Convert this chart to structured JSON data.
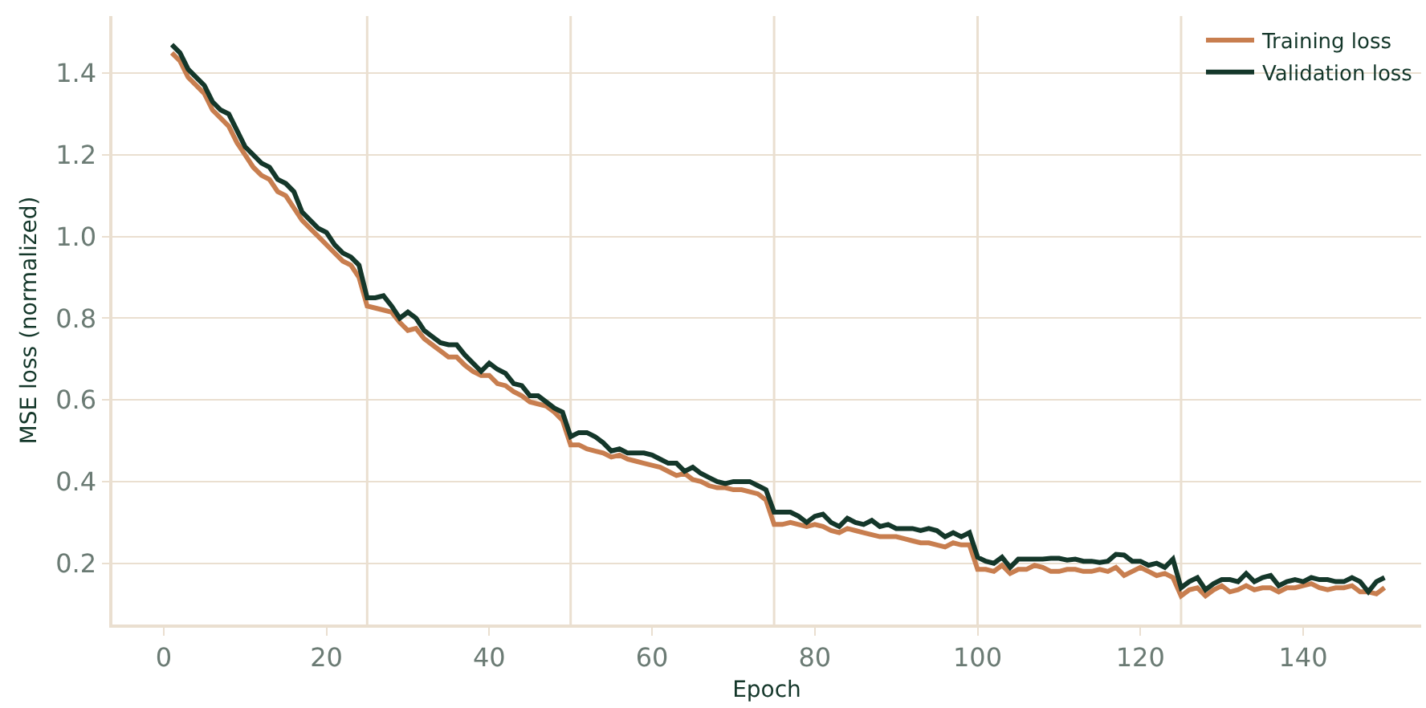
{
  "chart_data": {
    "type": "line",
    "xlabel": "Epoch",
    "ylabel": "MSE loss (normalized)",
    "x": [
      1,
      2,
      3,
      4,
      5,
      6,
      7,
      8,
      9,
      10,
      11,
      12,
      13,
      14,
      15,
      16,
      17,
      18,
      19,
      20,
      21,
      22,
      23,
      24,
      25,
      26,
      27,
      28,
      29,
      30,
      31,
      32,
      33,
      34,
      35,
      36,
      37,
      38,
      39,
      40,
      41,
      42,
      43,
      44,
      45,
      46,
      47,
      48,
      49,
      50,
      51,
      52,
      53,
      54,
      55,
      56,
      57,
      58,
      59,
      60,
      61,
      62,
      63,
      64,
      65,
      66,
      67,
      68,
      69,
      70,
      71,
      72,
      73,
      74,
      75,
      76,
      77,
      78,
      79,
      80,
      81,
      82,
      83,
      84,
      85,
      86,
      87,
      88,
      89,
      90,
      91,
      92,
      93,
      94,
      95,
      96,
      97,
      98,
      99,
      100,
      101,
      102,
      103,
      104,
      105,
      106,
      107,
      108,
      109,
      110,
      111,
      112,
      113,
      114,
      115,
      116,
      117,
      118,
      119,
      120,
      121,
      122,
      123,
      124,
      125,
      126,
      127,
      128,
      129,
      130,
      131,
      132,
      133,
      134,
      135,
      136,
      137,
      138,
      139,
      140,
      141,
      142,
      143,
      144,
      145,
      146,
      147,
      148,
      149,
      150
    ],
    "series": [
      {
        "name": "Training loss",
        "color": "#c87e4f",
        "values": [
          1.45,
          1.43,
          1.39,
          1.37,
          1.35,
          1.31,
          1.29,
          1.27,
          1.23,
          1.2,
          1.17,
          1.15,
          1.14,
          1.11,
          1.1,
          1.07,
          1.04,
          1.02,
          1.0,
          0.98,
          0.96,
          0.94,
          0.93,
          0.9,
          0.83,
          0.825,
          0.82,
          0.815,
          0.79,
          0.77,
          0.775,
          0.75,
          0.735,
          0.72,
          0.705,
          0.705,
          0.685,
          0.67,
          0.66,
          0.66,
          0.64,
          0.635,
          0.62,
          0.61,
          0.595,
          0.59,
          0.585,
          0.57,
          0.55,
          0.49,
          0.49,
          0.48,
          0.475,
          0.47,
          0.46,
          0.465,
          0.455,
          0.45,
          0.445,
          0.44,
          0.435,
          0.425,
          0.415,
          0.42,
          0.405,
          0.4,
          0.39,
          0.385,
          0.385,
          0.38,
          0.38,
          0.375,
          0.37,
          0.355,
          0.295,
          0.295,
          0.3,
          0.295,
          0.29,
          0.295,
          0.29,
          0.28,
          0.275,
          0.285,
          0.28,
          0.275,
          0.27,
          0.265,
          0.265,
          0.265,
          0.26,
          0.255,
          0.25,
          0.25,
          0.245,
          0.24,
          0.25,
          0.245,
          0.245,
          0.185,
          0.185,
          0.18,
          0.195,
          0.175,
          0.185,
          0.185,
          0.195,
          0.19,
          0.18,
          0.18,
          0.185,
          0.185,
          0.18,
          0.18,
          0.185,
          0.18,
          0.19,
          0.17,
          0.18,
          0.19,
          0.18,
          0.17,
          0.175,
          0.165,
          0.12,
          0.135,
          0.14,
          0.12,
          0.135,
          0.145,
          0.13,
          0.135,
          0.145,
          0.135,
          0.14,
          0.14,
          0.13,
          0.14,
          0.14,
          0.145,
          0.15,
          0.14,
          0.135,
          0.14,
          0.14,
          0.145,
          0.13,
          0.13,
          0.125,
          0.14
        ]
      },
      {
        "name": "Validation loss",
        "color": "#14372a",
        "values": [
          1.47,
          1.45,
          1.41,
          1.39,
          1.37,
          1.33,
          1.31,
          1.3,
          1.26,
          1.22,
          1.2,
          1.18,
          1.17,
          1.14,
          1.13,
          1.11,
          1.06,
          1.04,
          1.02,
          1.01,
          0.98,
          0.96,
          0.95,
          0.93,
          0.85,
          0.85,
          0.855,
          0.83,
          0.8,
          0.815,
          0.8,
          0.77,
          0.755,
          0.74,
          0.735,
          0.735,
          0.71,
          0.69,
          0.67,
          0.69,
          0.675,
          0.665,
          0.64,
          0.635,
          0.61,
          0.61,
          0.595,
          0.58,
          0.57,
          0.51,
          0.52,
          0.52,
          0.51,
          0.495,
          0.475,
          0.48,
          0.47,
          0.47,
          0.47,
          0.465,
          0.455,
          0.445,
          0.445,
          0.425,
          0.435,
          0.42,
          0.41,
          0.4,
          0.395,
          0.4,
          0.4,
          0.4,
          0.39,
          0.38,
          0.325,
          0.325,
          0.325,
          0.315,
          0.3,
          0.315,
          0.32,
          0.3,
          0.29,
          0.31,
          0.3,
          0.295,
          0.305,
          0.29,
          0.295,
          0.285,
          0.285,
          0.285,
          0.28,
          0.285,
          0.28,
          0.265,
          0.275,
          0.265,
          0.275,
          0.215,
          0.205,
          0.2,
          0.215,
          0.19,
          0.21,
          0.21,
          0.21,
          0.21,
          0.212,
          0.212,
          0.208,
          0.21,
          0.205,
          0.205,
          0.202,
          0.205,
          0.222,
          0.22,
          0.205,
          0.205,
          0.195,
          0.2,
          0.19,
          0.21,
          0.14,
          0.155,
          0.165,
          0.135,
          0.15,
          0.16,
          0.16,
          0.155,
          0.175,
          0.155,
          0.165,
          0.17,
          0.145,
          0.155,
          0.16,
          0.155,
          0.165,
          0.16,
          0.16,
          0.155,
          0.155,
          0.165,
          0.155,
          0.13,
          0.155,
          0.165
        ]
      }
    ],
    "xlim": [
      -6.3,
      154.5
    ],
    "xticks": [
      0,
      20,
      40,
      60,
      80,
      100,
      120,
      140
    ],
    "ylim": [
      0.05,
      1.54
    ],
    "yticks": [
      {
        "value": 0.2,
        "label": "0.2"
      },
      {
        "value": 0.4,
        "label": "0.4"
      },
      {
        "value": 0.6,
        "label": "0.6"
      },
      {
        "value": 0.8,
        "label": "0.8"
      },
      {
        "value": 1.0,
        "label": "1.0"
      },
      {
        "value": 1.2,
        "label": "1.2"
      },
      {
        "value": 1.4,
        "label": "1.4"
      }
    ],
    "ref_lines": [
      {
        "axis": "x",
        "value": 25,
        "color": "#eadfd0"
      },
      {
        "axis": "x",
        "value": 50,
        "color": "#eadfd0"
      },
      {
        "axis": "x",
        "value": 75,
        "color": "#eadfd0"
      },
      {
        "axis": "x",
        "value": 100,
        "color": "#eadfd0"
      },
      {
        "axis": "x",
        "value": 125,
        "color": "#eadfd0"
      }
    ],
    "grid": "y",
    "legend": "top right",
    "marker": "none",
    "line_style": "solid"
  }
}
